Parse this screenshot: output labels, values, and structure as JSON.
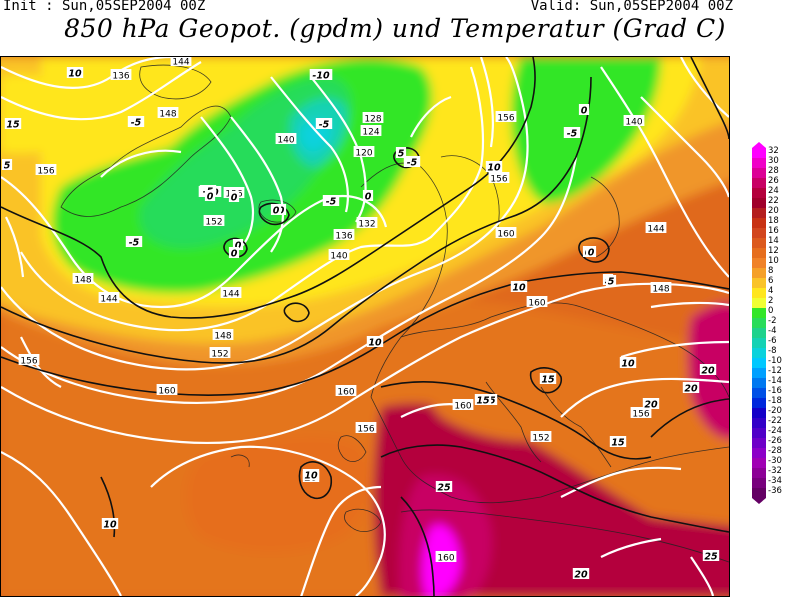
{
  "header": {
    "init": "Init : Sun,05SEP2004 00Z",
    "valid": "Valid: Sun,05SEP2004 00Z",
    "title": "850 hPa Geopot. (gpdm) und Temperatur (Grad C)"
  },
  "legend": {
    "labels": [
      "32",
      "30",
      "28",
      "26",
      "24",
      "22",
      "20",
      "18",
      "16",
      "14",
      "12",
      "10",
      "8",
      "6",
      "4",
      "2",
      "0",
      "-2",
      "-4",
      "-6",
      "-8",
      "-10",
      "-12",
      "-14",
      "-16",
      "-18",
      "-20",
      "-22",
      "-24",
      "-26",
      "-28",
      "-30",
      "-32",
      "-34",
      "-36"
    ],
    "colors": [
      "#ff00ff",
      "#f000c8",
      "#dc0096",
      "#c80064",
      "#b4003c",
      "#a0002a",
      "#b41e1e",
      "#c83214",
      "#d2461e",
      "#dc5a1e",
      "#e66e1e",
      "#f08228",
      "#f5a028",
      "#fac328",
      "#ffe61e",
      "#f0ff32",
      "#32e628",
      "#28dc5a",
      "#1ed28c",
      "#14d2b4",
      "#0ad2dc",
      "#00c8ff",
      "#00a0ff",
      "#0078f0",
      "#0050e6",
      "#0028dc",
      "#1400c8",
      "#3200c8",
      "#5000c8",
      "#6e00c8",
      "#8c00c8",
      "#a000b4",
      "#8c0096",
      "#78007d",
      "#640064"
    ]
  },
  "map": {
    "geopotential_labels": [
      "136",
      "144",
      "148",
      "152",
      "156",
      "140",
      "136",
      "128",
      "124",
      "120",
      "132",
      "136",
      "140",
      "144",
      "148",
      "144",
      "148",
      "152",
      "156",
      "160",
      "156",
      "160",
      "160",
      "156",
      "160",
      "156",
      "160",
      "152",
      "156",
      "140",
      "144",
      "148",
      "160"
    ],
    "temperature_labels": [
      "10",
      "15",
      "5",
      "-5",
      "0",
      "-10",
      "-10",
      "-5",
      "-5",
      "0",
      "0",
      "-5",
      "0",
      "0",
      "-5",
      "0",
      "-5",
      "0",
      "0",
      "5",
      "10",
      "10",
      "10",
      "10",
      "15",
      "20",
      "20",
      "20",
      "25",
      "20",
      "25",
      "15",
      "10",
      "10",
      "15",
      "15",
      "10",
      "0",
      "-5",
      "5",
      "0",
      "5"
    ]
  }
}
